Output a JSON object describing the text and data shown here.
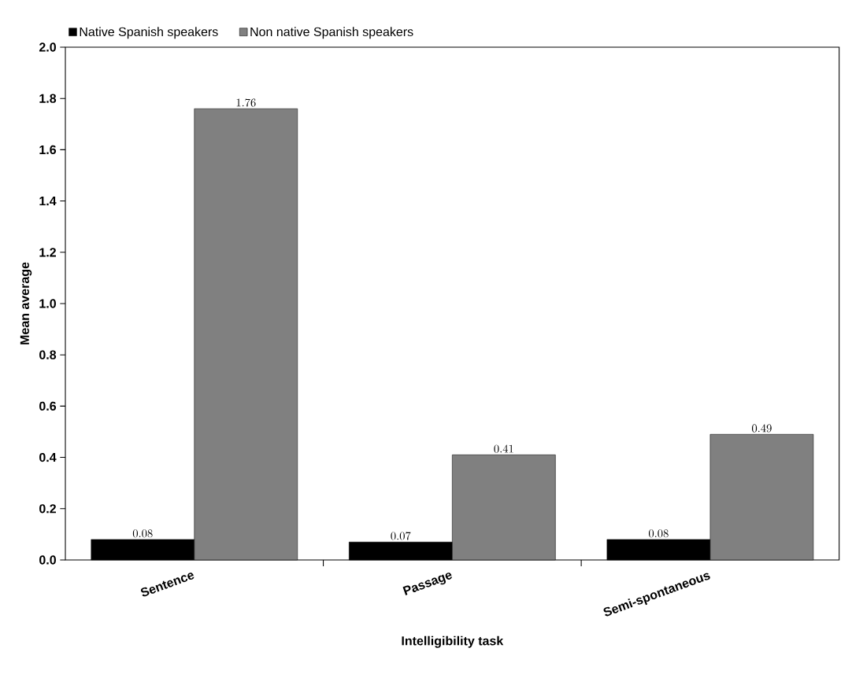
{
  "chart_data": {
    "type": "bar",
    "xlabel": "Intelligibility task",
    "ylabel": "Mean average",
    "categories": [
      "Sentence",
      "Passage",
      "Semi-spontaneous"
    ],
    "series": [
      {
        "name": "Native Spanish speakers",
        "color": "#000000",
        "values": [
          0.08,
          0.07,
          0.08
        ]
      },
      {
        "name": "Non native Spanish speakers",
        "color": "#808080",
        "values": [
          1.76,
          0.41,
          0.49
        ]
      }
    ],
    "ylim": [
      0,
      2
    ],
    "yticks": [
      {
        "value": 0,
        "label": "0.0"
      },
      0.2,
      0.4,
      0.6,
      0.8,
      {
        "value": 1,
        "label": "1.0"
      },
      1.2,
      1.4,
      1.6,
      1.8,
      {
        "value": 2,
        "label": "2.0"
      }
    ],
    "data_labels": true,
    "grid": false,
    "legend": "top left"
  }
}
